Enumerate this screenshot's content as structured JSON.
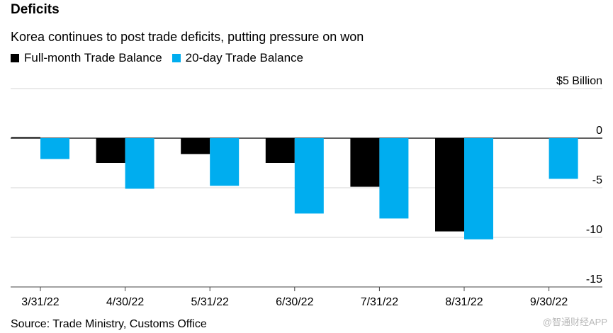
{
  "chart_data": {
    "type": "bar",
    "title": "Deficits",
    "subtitle": "Korea continues to post trade deficits, putting pressure on won",
    "unit_label": "$5 Billion",
    "categories": [
      "3/31/22",
      "4/30/22",
      "5/31/22",
      "6/30/22",
      "7/31/22",
      "8/31/22",
      "9/30/22"
    ],
    "series": [
      {
        "name": "Full-month Trade Balance",
        "color": "#000000",
        "values": [
          0.1,
          -2.5,
          -1.6,
          -2.5,
          -4.9,
          -9.4,
          null
        ]
      },
      {
        "name": "20-day Trade Balance",
        "color": "#00adef",
        "values": [
          -2.1,
          -5.1,
          -4.8,
          -7.6,
          -8.1,
          -10.2,
          -4.1
        ]
      }
    ],
    "y_ticks": [
      5,
      0,
      -5,
      -10,
      -15
    ],
    "y_tick_labels": [
      "$5 Billion",
      "0",
      "-5",
      "-10",
      "-15"
    ],
    "ylim": [
      -15,
      5
    ],
    "grid": true,
    "legend_position": "top-left",
    "source": "Source: Trade Ministry, Customs Office"
  },
  "watermark": "@智通财经APP"
}
